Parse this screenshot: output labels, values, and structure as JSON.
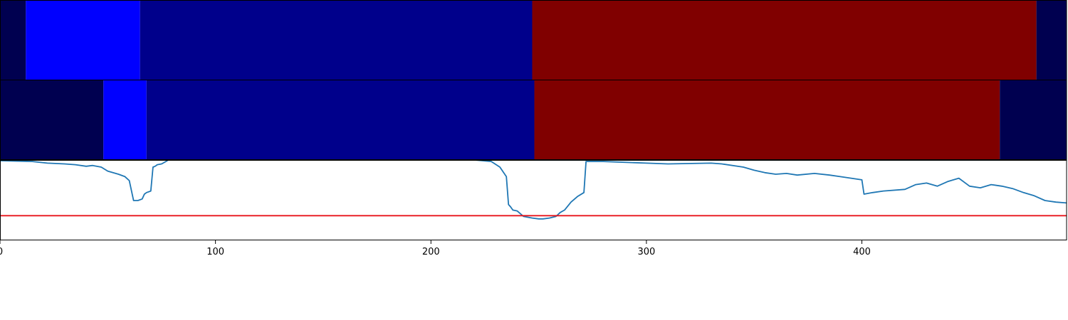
{
  "chart_data": {
    "type": "line",
    "title": "",
    "xlabel": "",
    "ylabel": "",
    "xlim": [
      0,
      495
    ],
    "ylim": [
      0.0,
      1.0
    ],
    "x_ticks": [
      0,
      100,
      200,
      300,
      400
    ],
    "grid": false,
    "legend": "none",
    "segment_bands": [
      {
        "name": "",
        "segments": [
          {
            "start": 0,
            "end": 12,
            "color": "#000050"
          },
          {
            "start": 12,
            "end": 65,
            "color": "#0000ff"
          },
          {
            "start": 65,
            "end": 247,
            "color": "#00008b"
          },
          {
            "start": 247,
            "end": 481,
            "color": "#800000"
          },
          {
            "start": 481,
            "end": 495,
            "color": "#000050"
          }
        ]
      },
      {
        "name": "",
        "segments": [
          {
            "start": 0,
            "end": 48,
            "color": "#000050"
          },
          {
            "start": 48,
            "end": 68,
            "color": "#0000ff"
          },
          {
            "start": 68,
            "end": 248,
            "color": "#00008b"
          },
          {
            "start": 248,
            "end": 464,
            "color": "#800000"
          },
          {
            "start": 464,
            "end": 495,
            "color": "#000050"
          }
        ]
      }
    ],
    "series": [
      {
        "name": "",
        "color": "#1f77b4",
        "x": [
          0,
          15,
          22,
          30,
          35,
          40,
          43,
          47,
          50,
          55,
          58,
          60,
          62,
          64,
          66,
          67,
          68,
          70,
          71,
          72,
          73,
          75,
          77,
          80,
          85,
          120,
          150,
          180,
          200,
          210,
          220,
          228,
          232,
          235,
          236,
          237,
          238,
          240,
          243,
          245,
          247,
          250,
          252,
          255,
          258,
          260,
          262,
          265,
          268,
          271,
          272,
          280,
          300,
          310,
          330,
          335,
          345,
          350,
          355,
          360,
          365,
          370,
          378,
          385,
          390,
          395,
          400,
          401,
          405,
          410,
          420,
          425,
          430,
          435,
          440,
          445,
          450,
          455,
          460,
          465,
          470,
          475,
          480,
          485,
          490,
          495
        ],
        "y": [
          1.0,
          0.99,
          0.97,
          0.96,
          0.95,
          0.93,
          0.94,
          0.92,
          0.87,
          0.83,
          0.8,
          0.75,
          0.5,
          0.5,
          0.52,
          0.58,
          0.6,
          0.62,
          0.92,
          0.93,
          0.95,
          0.96,
          0.99,
          1.04,
          1.04,
          1.03,
          1.02,
          1.02,
          1.01,
          1.02,
          1.01,
          0.99,
          0.92,
          0.8,
          0.45,
          0.42,
          0.38,
          0.37,
          0.3,
          0.29,
          0.28,
          0.27,
          0.27,
          0.28,
          0.3,
          0.35,
          0.38,
          0.48,
          0.55,
          0.6,
          0.99,
          0.99,
          0.97,
          0.96,
          0.97,
          0.96,
          0.92,
          0.88,
          0.85,
          0.83,
          0.84,
          0.82,
          0.84,
          0.82,
          0.8,
          0.78,
          0.76,
          0.58,
          0.6,
          0.62,
          0.64,
          0.7,
          0.72,
          0.68,
          0.74,
          0.78,
          0.68,
          0.66,
          0.7,
          0.68,
          0.65,
          0.6,
          0.56,
          0.5,
          0.48,
          0.47
        ]
      },
      {
        "name": "",
        "color": "#e8141b",
        "x": [
          0,
          495
        ],
        "y": [
          0.31,
          0.31
        ]
      }
    ]
  }
}
